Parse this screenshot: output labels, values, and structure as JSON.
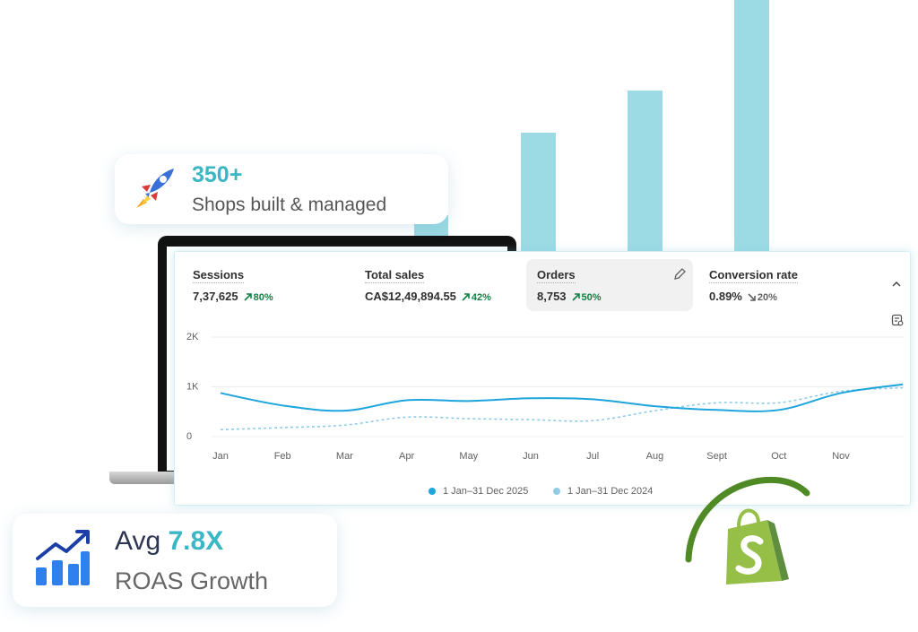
{
  "badges": {
    "shops": {
      "value": "350+",
      "label": "Shops built & managed"
    },
    "roas": {
      "prefix": "Avg",
      "value": "7.8X",
      "label": "ROAS Growth"
    }
  },
  "metrics": [
    {
      "name": "Sessions",
      "value": "7,37,625",
      "change": "80%"
    },
    {
      "name": "Total sales",
      "value": "CA$12,49,894.55",
      "change": "42%"
    },
    {
      "name": "Orders",
      "value": "8,753",
      "change": "50%"
    },
    {
      "name": "Conversion rate",
      "value": "0.89%",
      "change": "20%"
    }
  ],
  "chart_data": {
    "type": "line",
    "categories": [
      "Jan",
      "Feb",
      "Mar",
      "Apr",
      "May",
      "Jun",
      "Jul",
      "Aug",
      "Sept",
      "Oct",
      "Nov",
      null
    ],
    "series": [
      {
        "name": "1 Jan–31 Dec 2025",
        "color": "#1ea5dc",
        "dashed": false,
        "values": [
          875,
          625,
          520,
          730,
          715,
          770,
          750,
          610,
          535,
          535,
          875,
          1050
        ]
      },
      {
        "name": "1 Jan–31 Dec 2024",
        "color": "#8fcbe8",
        "dashed": true,
        "values": [
          140,
          180,
          230,
          390,
          360,
          340,
          320,
          520,
          680,
          680,
          910,
          980
        ]
      }
    ],
    "ylim": [
      0,
      2000
    ],
    "yticks": [
      0,
      {
        "value": 1000,
        "label": "1K"
      },
      {
        "value": 2000,
        "label": "2K"
      }
    ],
    "grid": true
  }
}
